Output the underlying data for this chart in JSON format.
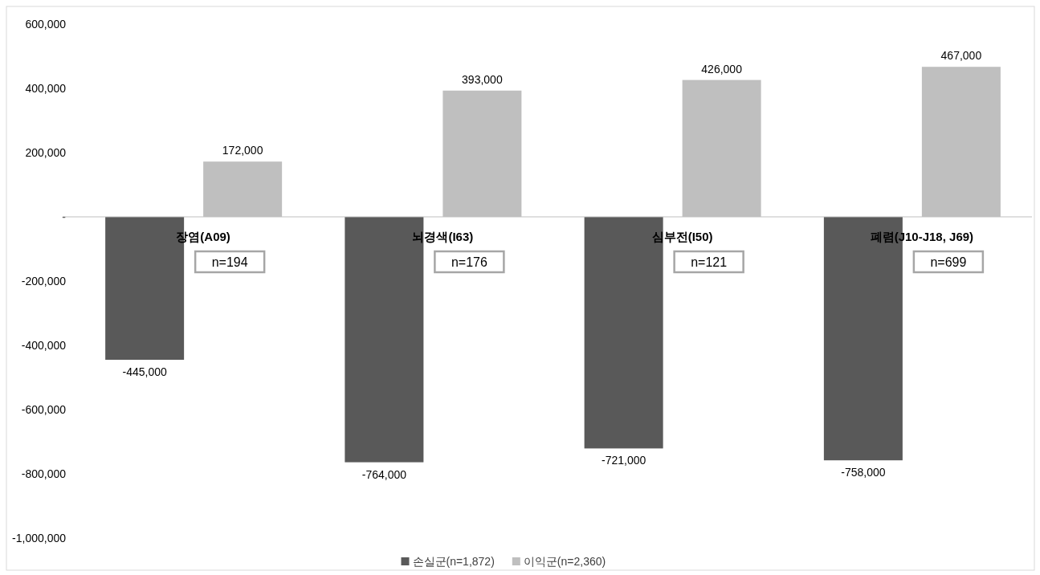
{
  "chart_data": {
    "type": "bar",
    "categories": [
      "장염(A09)",
      "뇌경색(I63)",
      "심부전(I50)",
      "폐렴(J10-J18, J69)"
    ],
    "series": [
      {
        "name": "손실군(n=1,872)",
        "color": "#595959",
        "values": [
          -445000,
          -764000,
          -721000,
          -758000
        ],
        "value_labels": [
          "-445,000",
          "-764,000",
          "-721,000",
          "-758,000"
        ]
      },
      {
        "name": "이익군(n=2,360)",
        "color": "#bfbfbf",
        "values": [
          172000,
          393000,
          426000,
          467000
        ],
        "value_labels": [
          "172,000",
          "393,000",
          "426,000",
          "467,000"
        ]
      }
    ],
    "ylim": [
      -1000000,
      600000
    ],
    "yticks": [
      {
        "value": -1000000,
        "label": "-1,000,000"
      },
      {
        "value": -800000,
        "label": "-800,000"
      },
      {
        "value": -600000,
        "label": "-600,000"
      },
      {
        "value": -400000,
        "label": "-400,000"
      },
      {
        "value": -200000,
        "label": "-200,000"
      },
      {
        "value": 0,
        "label": "-"
      },
      {
        "value": 200000,
        "label": "200,000"
      },
      {
        "value": 400000,
        "label": "400,000"
      },
      {
        "value": 600000,
        "label": "600,000"
      }
    ],
    "annotations": [
      "n=194",
      "n=176",
      "n=121",
      "n=699"
    ],
    "grid": false,
    "legend": "bottom"
  }
}
